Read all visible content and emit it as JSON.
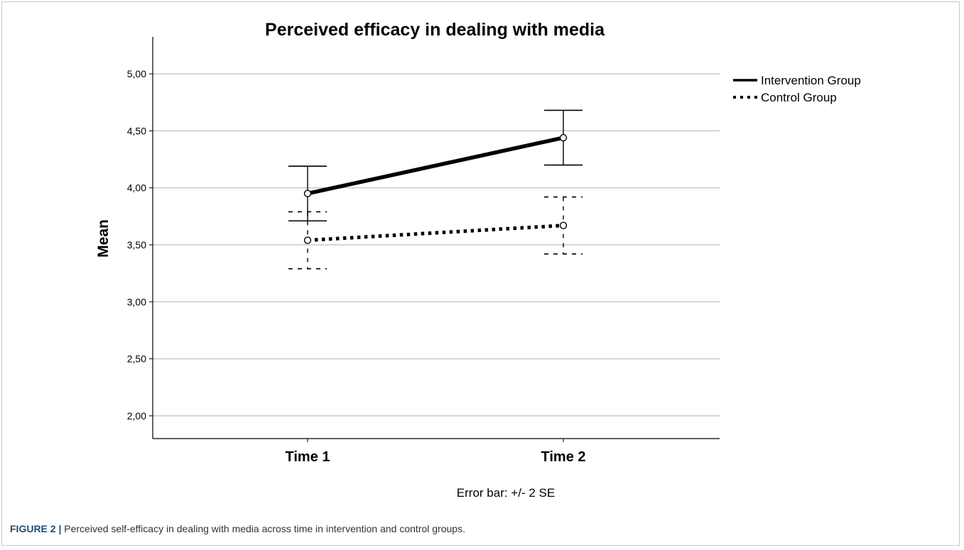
{
  "chart_data": {
    "type": "line",
    "title": "Perceived efficacy in dealing with media",
    "xlabel": "",
    "ylabel": "Mean",
    "categories": [
      "Time 1",
      "Time 2"
    ],
    "ylim": [
      1.8,
      5.15
    ],
    "yticks": [
      "2,00",
      "2,50",
      "3,00",
      "3,50",
      "4,00",
      "4,50",
      "5,00"
    ],
    "grid": true,
    "legend_position": "right",
    "series": [
      {
        "name": "Intervention Group",
        "style": "solid",
        "color": "#000000",
        "values": [
          3.95,
          4.44
        ],
        "error_low": [
          3.71,
          4.2
        ],
        "error_high": [
          4.19,
          4.68
        ]
      },
      {
        "name": "Control Group",
        "style": "dotted",
        "color": "#000000",
        "values": [
          3.54,
          3.67
        ],
        "error_low": [
          3.29,
          3.42
        ],
        "error_high": [
          3.79,
          3.92
        ]
      }
    ],
    "note": "Error bar: +/- 2 SE"
  },
  "caption": {
    "label": "FIGURE 2 |",
    "text": " Perceived self-efficacy in dealing with media across time in intervention and control groups."
  }
}
